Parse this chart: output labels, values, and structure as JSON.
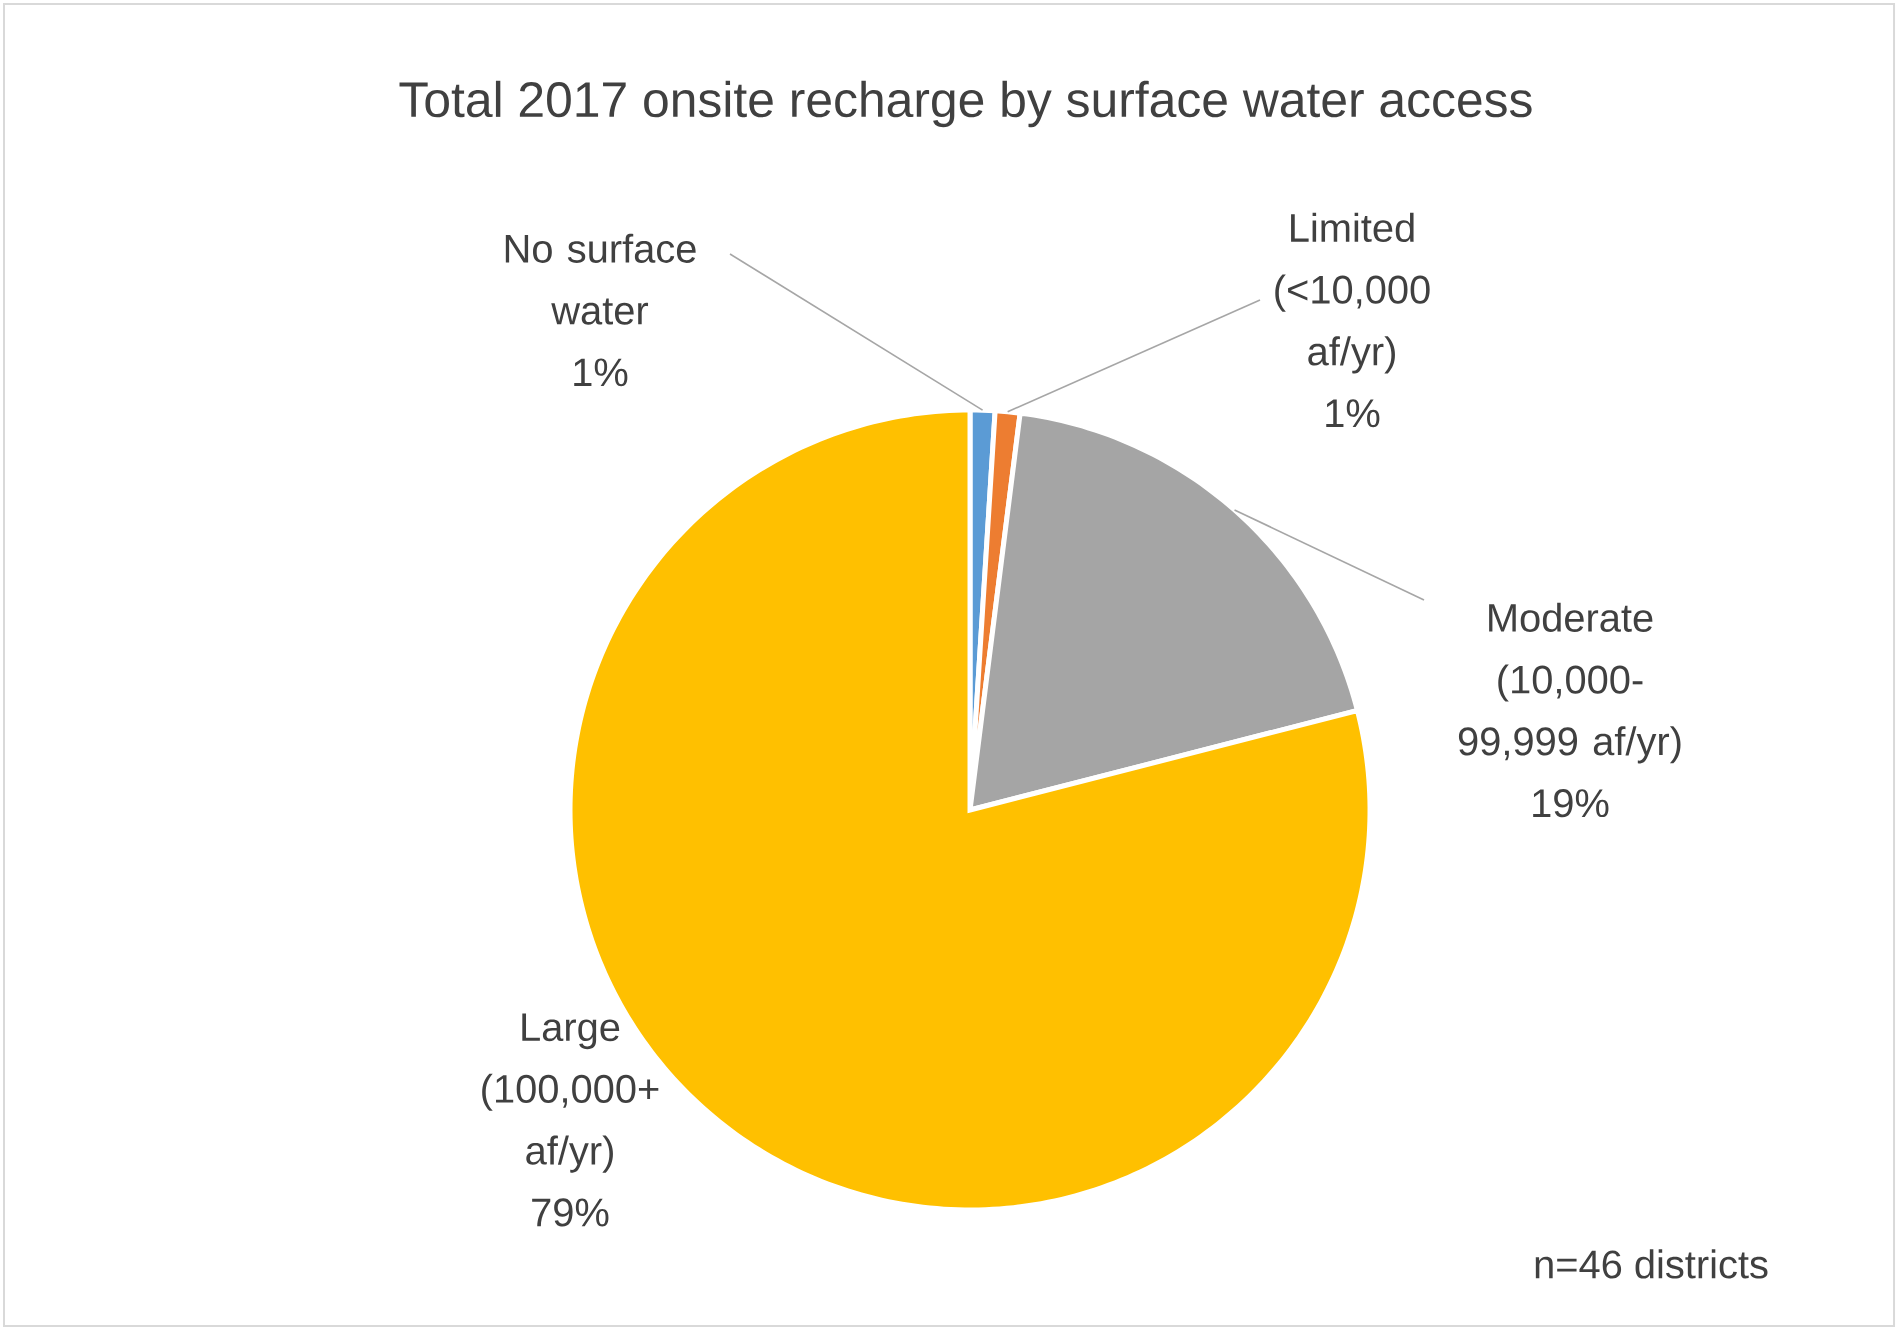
{
  "chart_data": {
    "type": "pie",
    "title": "Total 2017 onsite recharge by surface water access",
    "categories": [
      "No surface water",
      "Limited (<10,000 af/yr)",
      "Moderate (10,000-99,999 af/yr)",
      "Large (100,000+ af/yr)"
    ],
    "values": [
      1,
      1,
      19,
      79
    ],
    "value_labels": [
      "1%",
      "1%",
      "19%",
      "79%"
    ],
    "colors": [
      "#5b9bd5",
      "#ed7d31",
      "#a5a5a5",
      "#ffc000"
    ],
    "annotations": [
      "n=46 districts"
    ]
  }
}
